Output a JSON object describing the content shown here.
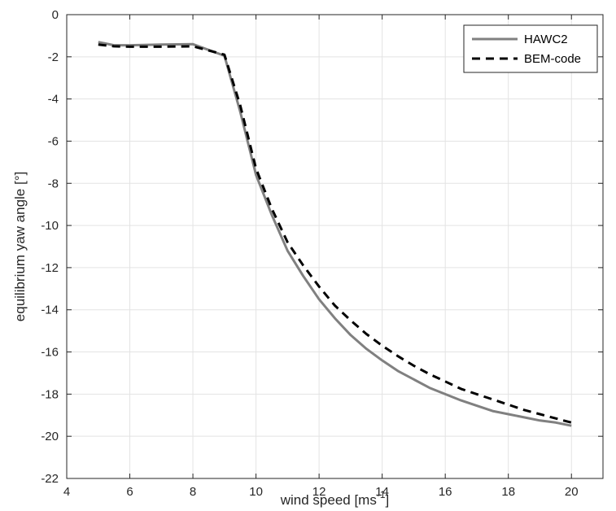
{
  "chart_data": {
    "type": "line",
    "xlabel_base": "wind speed [ms",
    "xlabel_sup": "-1",
    "xlabel_end": "]",
    "ylabel": "equilibrium yaw angle [°]",
    "xlim": [
      4,
      21
    ],
    "ylim": [
      -22,
      0
    ],
    "xticks": [
      4,
      6,
      8,
      10,
      12,
      14,
      16,
      18,
      20
    ],
    "yticks": [
      0,
      -2,
      -4,
      -6,
      -8,
      -10,
      -12,
      -14,
      -16,
      -18,
      -20,
      -22
    ],
    "grid": true,
    "legend_position": "top-right",
    "series": [
      {
        "name": "HAWC2",
        "color": "#808080",
        "dash": "solid",
        "x": [
          5,
          5.5,
          6,
          7,
          8,
          9,
          9.5,
          10,
          10.5,
          11,
          11.5,
          12,
          12.5,
          13,
          13.5,
          14,
          14.5,
          15,
          15.5,
          16,
          16.5,
          17,
          17.5,
          18,
          18.5,
          19,
          19.5,
          20
        ],
        "y": [
          -1.3,
          -1.45,
          -1.45,
          -1.42,
          -1.4,
          -1.95,
          -4.6,
          -7.6,
          -9.5,
          -11.2,
          -12.4,
          -13.5,
          -14.4,
          -15.2,
          -15.85,
          -16.4,
          -16.9,
          -17.3,
          -17.7,
          -18.0,
          -18.3,
          -18.55,
          -18.8,
          -18.95,
          -19.1,
          -19.25,
          -19.35,
          -19.5
        ]
      },
      {
        "name": "BEM-code",
        "color": "#000000",
        "dash": "dashed",
        "x": [
          5,
          5.5,
          6,
          7,
          8,
          9,
          9.5,
          10,
          10.5,
          11,
          11.5,
          12,
          12.5,
          13,
          13.5,
          14,
          14.5,
          15,
          15.5,
          16,
          16.5,
          17,
          17.5,
          18,
          18.5,
          19,
          19.5,
          20
        ],
        "y": [
          -1.42,
          -1.5,
          -1.52,
          -1.52,
          -1.5,
          -1.9,
          -4.3,
          -7.3,
          -9.2,
          -10.8,
          -11.9,
          -12.9,
          -13.8,
          -14.5,
          -15.15,
          -15.7,
          -16.2,
          -16.65,
          -17.05,
          -17.4,
          -17.75,
          -18.0,
          -18.25,
          -18.5,
          -18.75,
          -18.95,
          -19.15,
          -19.35
        ]
      }
    ]
  }
}
